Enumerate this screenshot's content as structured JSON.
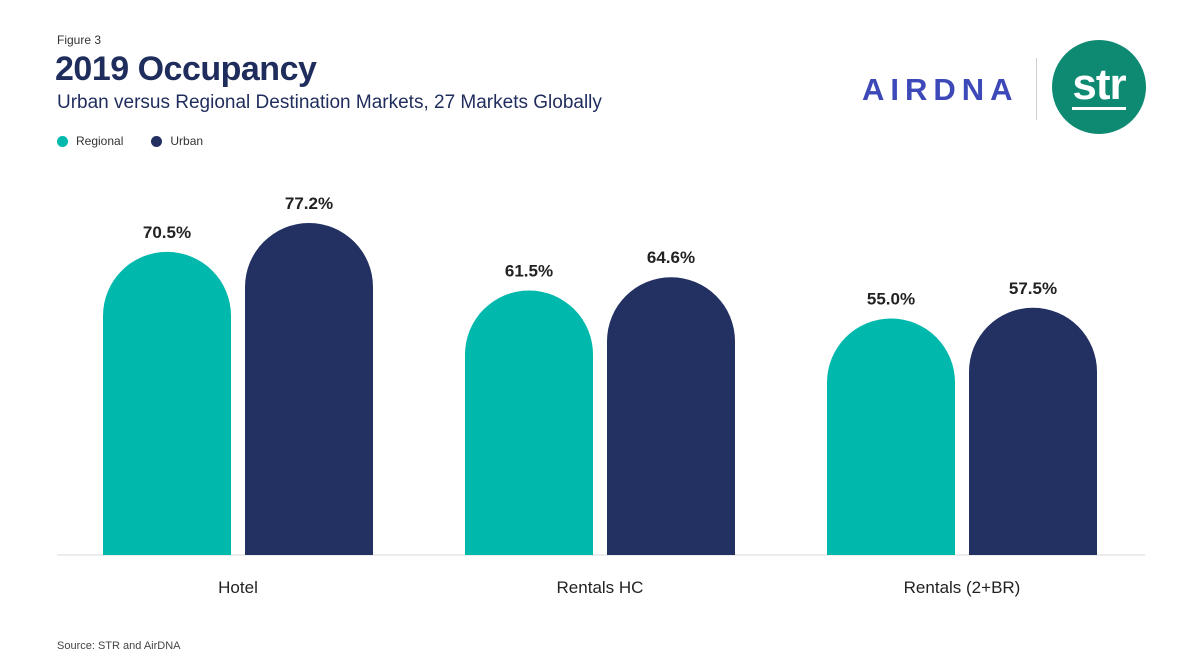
{
  "header": {
    "figure_label": "Figure 3",
    "title": "2019 Occupancy",
    "subtitle": "Urban versus Regional Destination Markets, 27 Markets Globally"
  },
  "logos": {
    "airdna": "AIRDNA",
    "str": "str"
  },
  "colors": {
    "regional": "#00b8ac",
    "urban": "#223062",
    "axis": "#d9d9d9"
  },
  "chart_data": {
    "type": "bar",
    "categories": [
      "Hotel",
      "Rentals HC",
      "Rentals (2+BR)"
    ],
    "series": [
      {
        "name": "Regional",
        "values": [
          70.5,
          61.5,
          55.0
        ],
        "labels": [
          "70.5%",
          "61.5%",
          "55.0%"
        ]
      },
      {
        "name": "Urban",
        "values": [
          77.2,
          64.6,
          57.5
        ],
        "labels": [
          "77.2%",
          "64.6%",
          "57.5%"
        ]
      }
    ],
    "unit": "%",
    "ylim": [
      0,
      100
    ],
    "grid": false,
    "legend_position": "top-left",
    "bar_style": "rounded-top"
  },
  "footer": {
    "source": "Source: STR and AirDNA"
  }
}
